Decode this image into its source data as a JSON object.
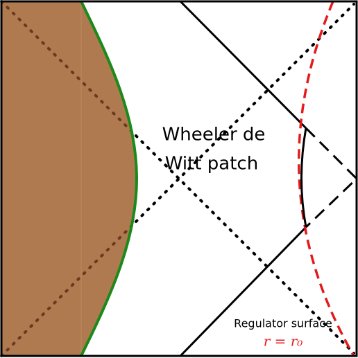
{
  "labels": {
    "region": [
      "Wheeler de",
      "Witt patch"
    ],
    "regulator": "Regulator surface",
    "cutoff": "r = r₀"
  }
}
